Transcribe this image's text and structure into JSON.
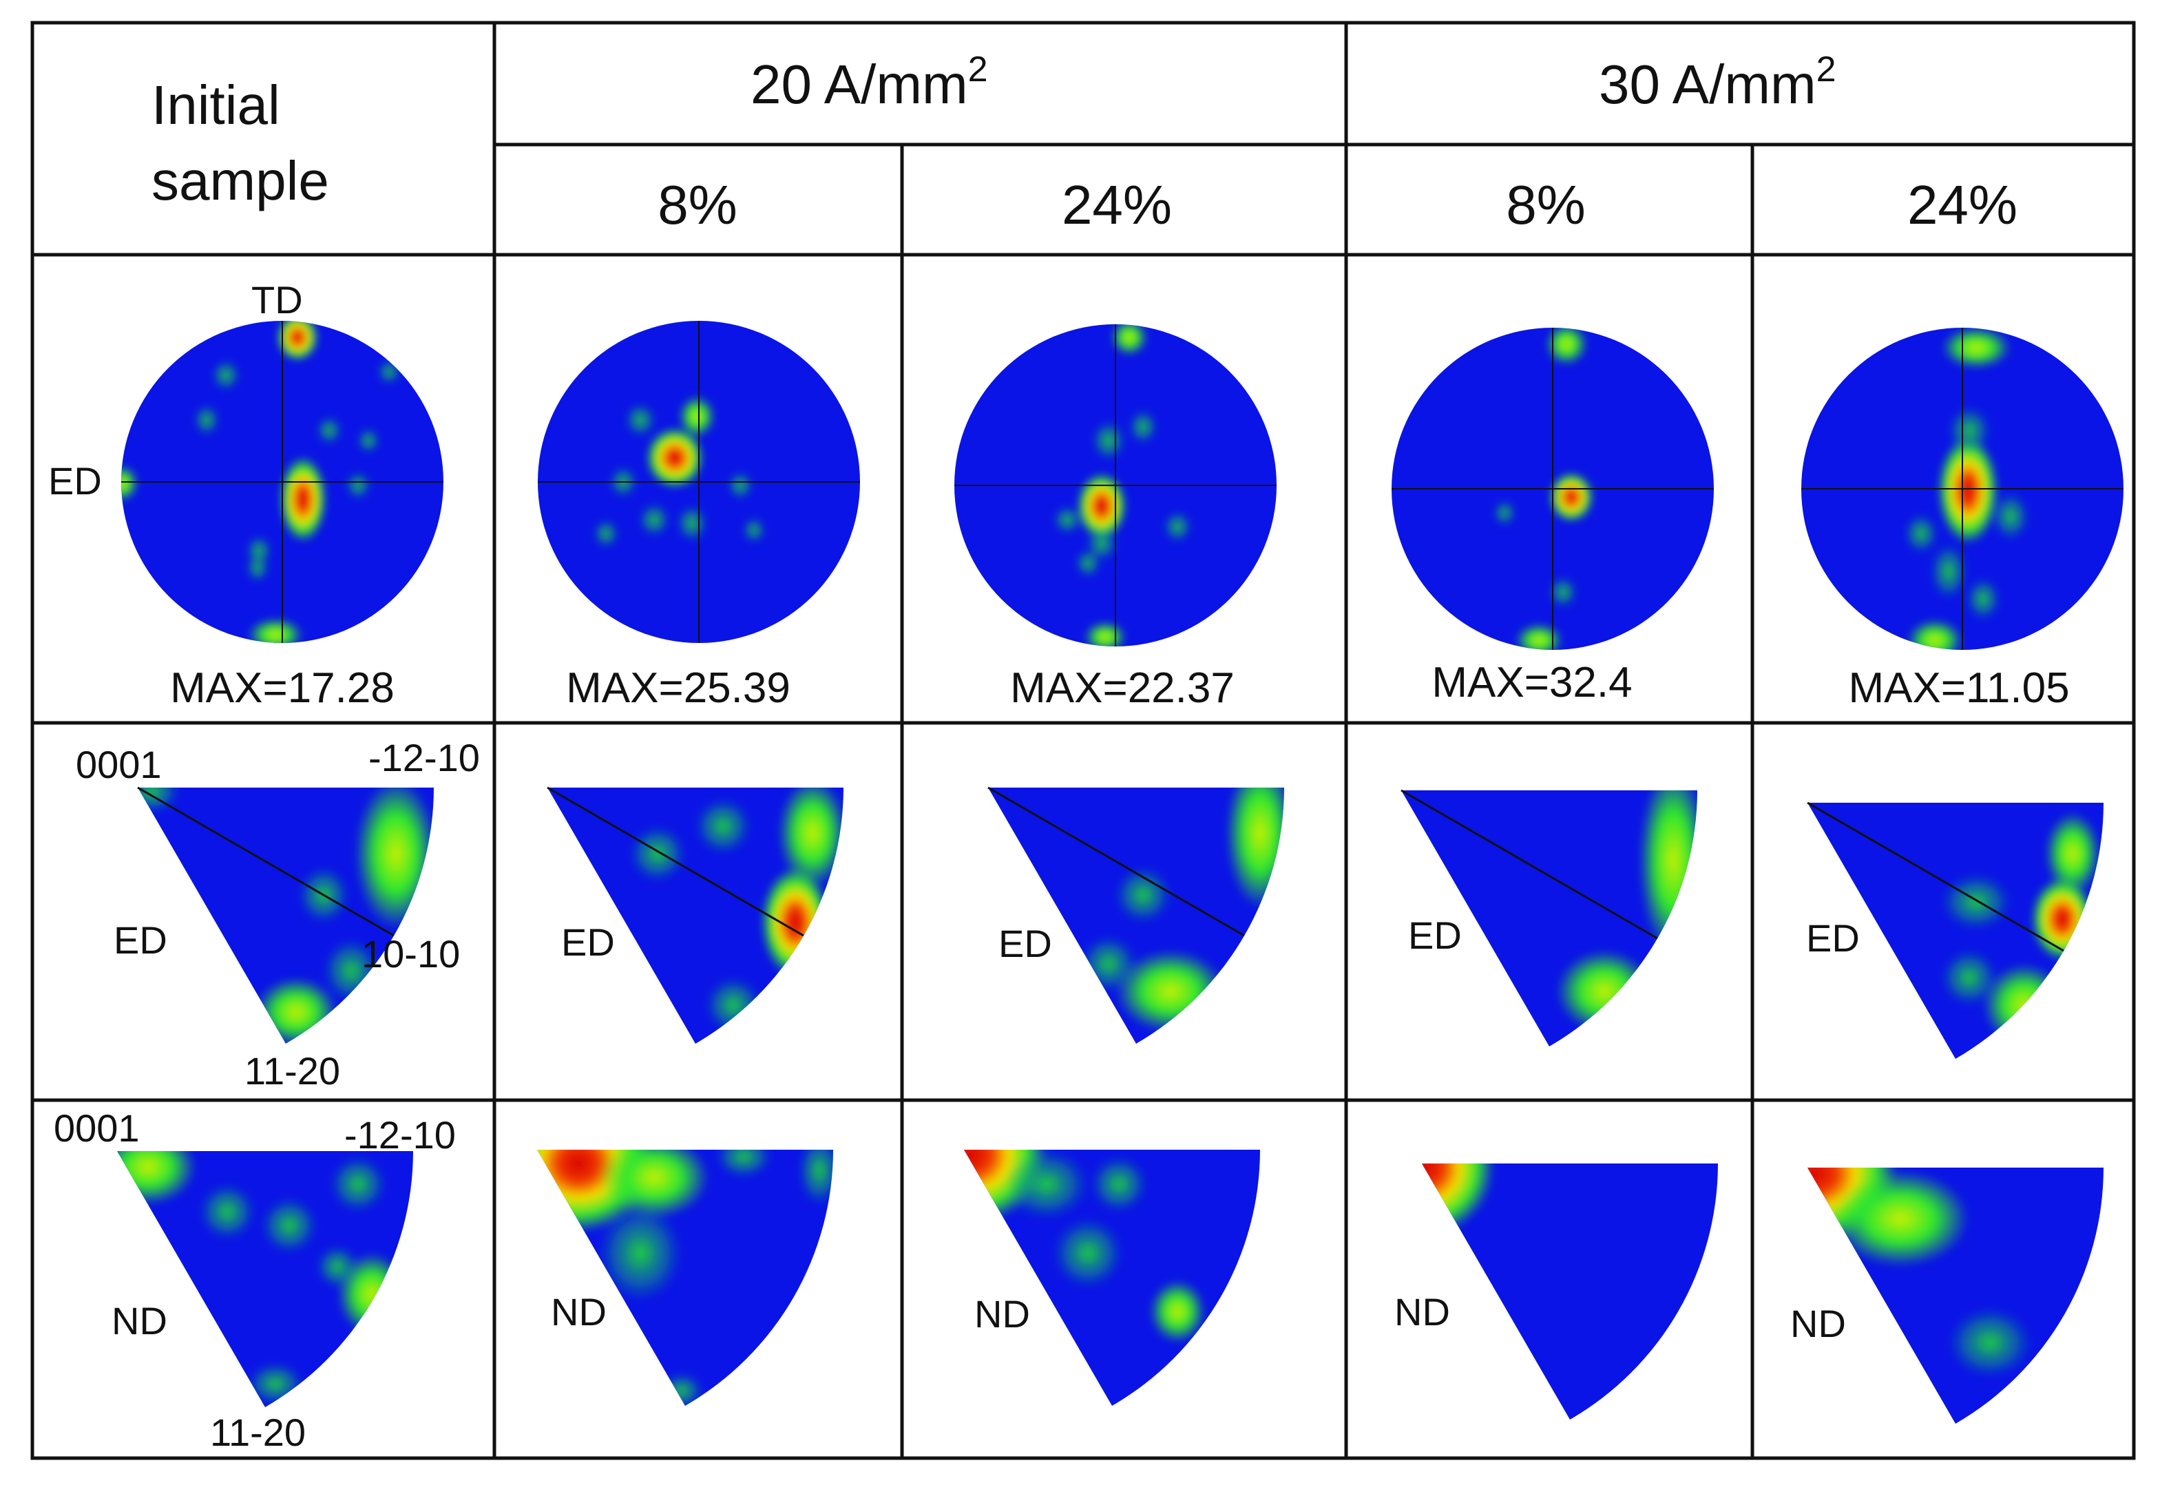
{
  "header": {
    "initial_line1": "Initial",
    "initial_line2": "sample",
    "group_20": "20 A/mm",
    "group_30": "30 A/mm",
    "superscript": "2",
    "pct_8": "8%",
    "pct_24": "24%"
  },
  "pole_figure_labels": {
    "top": "TD",
    "left": "ED"
  },
  "ipf_labels": {
    "corner_0001": "0001",
    "corner_1210": "-12-10",
    "corner_1010": "10-10",
    "corner_1120": "11-20",
    "ed": "ED",
    "nd": "ND"
  },
  "samples": [
    {
      "max": "MAX=17.28"
    },
    {
      "max": "MAX=25.39"
    },
    {
      "max": "MAX=22.37"
    },
    {
      "max": "MAX=32.4"
    },
    {
      "max": "MAX=11.05"
    }
  ],
  "colors": {
    "low": "#0a14e6",
    "mid": "#2ee62e",
    "high": "#f2f20a",
    "peak": "#e60a0a",
    "grid": "#111111"
  }
}
